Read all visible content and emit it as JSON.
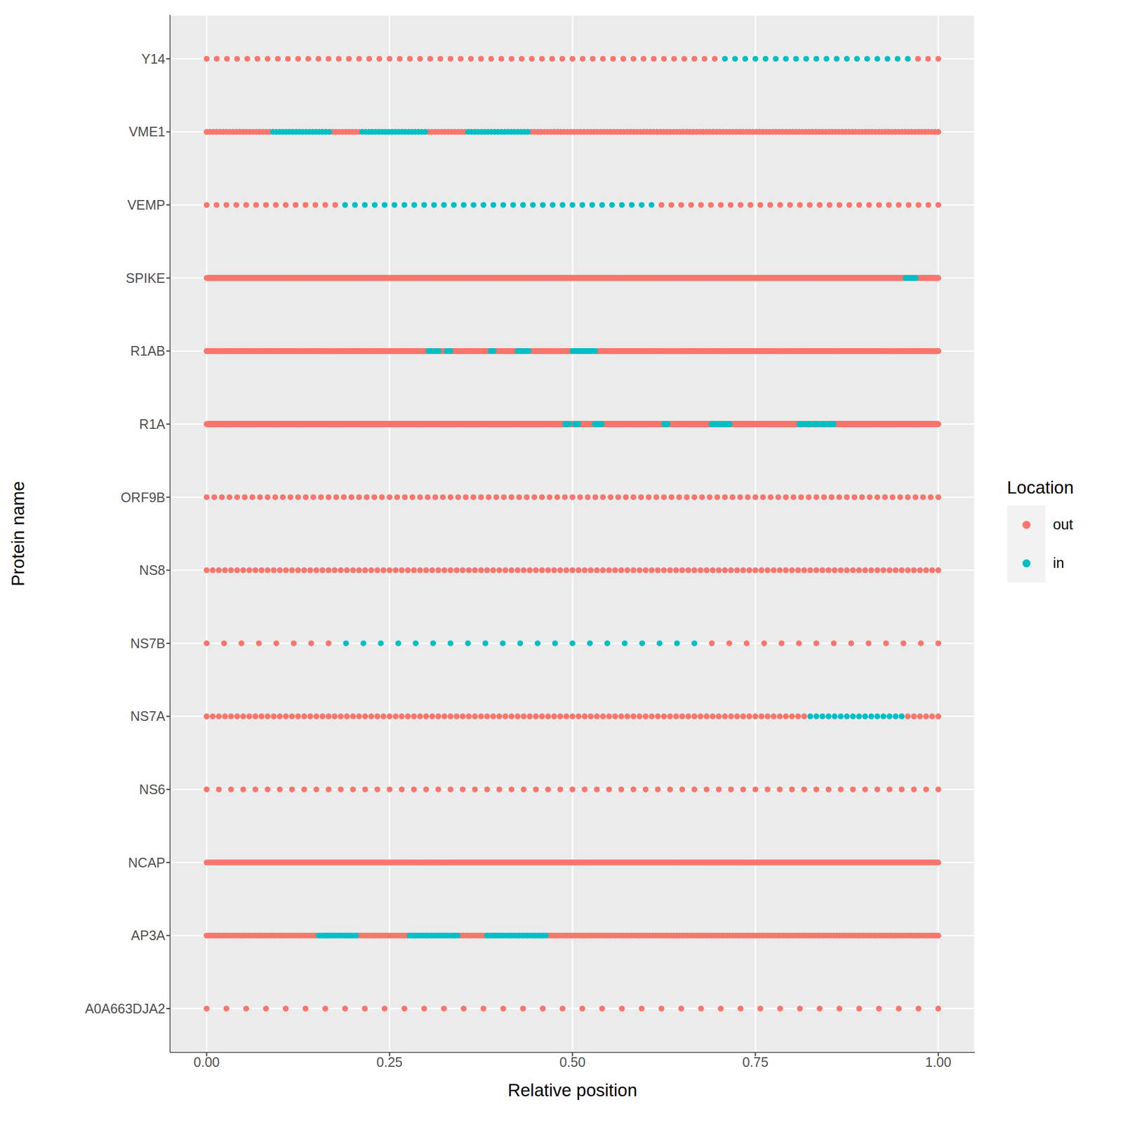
{
  "chart_data": {
    "type": "scatter",
    "x_label": "Relative position",
    "y_label": "Protein name",
    "xlim": [
      -0.05,
      1.05
    ],
    "xticks": [
      {
        "value": 0,
        "label": "0.00"
      },
      {
        "value": 0.25,
        "label": "0.25"
      },
      {
        "value": 0.5,
        "label": "0.50"
      },
      {
        "value": 0.75,
        "label": "0.75"
      },
      {
        "value": 1,
        "label": "1.00"
      }
    ],
    "grid": true,
    "legend": "right",
    "legend_title": "Location",
    "marker": "circle",
    "series": [
      {
        "name": "out",
        "color": "#F8766D"
      },
      {
        "name": "in",
        "color": "#00BFC4"
      }
    ],
    "proteins": [
      {
        "name": "A0A663DJA2",
        "length": 38,
        "in": []
      },
      {
        "name": "AP3A",
        "length": 275,
        "in": [
          [
            0.15,
            0.205
          ],
          [
            0.275,
            0.345
          ],
          [
            0.38,
            0.465
          ]
        ]
      },
      {
        "name": "NCAP",
        "length": 419,
        "in": []
      },
      {
        "name": "NS6",
        "length": 61,
        "in": []
      },
      {
        "name": "NS7A",
        "length": 121,
        "in": [
          [
            0.82,
            0.95
          ]
        ]
      },
      {
        "name": "NS7B",
        "length": 43,
        "in": [
          [
            0.19,
            0.69
          ]
        ]
      },
      {
        "name": "NS8",
        "length": 121,
        "in": []
      },
      {
        "name": "ORF9B",
        "length": 97,
        "in": []
      },
      {
        "name": "R1A",
        "length": 4405,
        "in": [
          [
            0.49,
            0.495
          ],
          [
            0.503,
            0.508
          ],
          [
            0.53,
            0.54
          ],
          [
            0.625,
            0.63
          ],
          [
            0.69,
            0.7
          ],
          [
            0.705,
            0.715
          ],
          [
            0.81,
            0.815
          ],
          [
            0.82,
            0.825
          ],
          [
            0.83,
            0.835
          ],
          [
            0.84,
            0.845
          ],
          [
            0.85,
            0.857
          ]
        ]
      },
      {
        "name": "R1AB",
        "length": 7096,
        "in": [
          [
            0.303,
            0.307
          ],
          [
            0.313,
            0.317
          ],
          [
            0.328,
            0.333
          ],
          [
            0.388,
            0.392
          ],
          [
            0.425,
            0.43
          ],
          [
            0.435,
            0.44
          ],
          [
            0.5,
            0.503
          ],
          [
            0.507,
            0.511
          ],
          [
            0.514,
            0.518
          ],
          [
            0.521,
            0.525
          ],
          [
            0.527,
            0.531
          ]
        ]
      },
      {
        "name": "SPIKE",
        "length": 1273,
        "in": [
          [
            0.955,
            0.97
          ]
        ]
      },
      {
        "name": "VEMP",
        "length": 75,
        "in": [
          [
            0.18,
            0.61
          ]
        ]
      },
      {
        "name": "VME1",
        "length": 222,
        "in": [
          [
            0.09,
            0.17
          ],
          [
            0.21,
            0.3
          ],
          [
            0.355,
            0.44
          ]
        ]
      },
      {
        "name": "Y14",
        "length": 73,
        "in": [
          [
            0.705,
            0.965
          ]
        ]
      }
    ]
  }
}
